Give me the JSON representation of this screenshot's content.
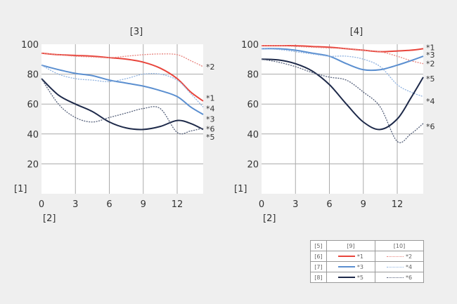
{
  "chart_data": [
    {
      "type": "line",
      "title": "[3]",
      "ylabel": "[1]",
      "xlabel": "[2]",
      "xlim": [
        0,
        14.3
      ],
      "ylim": [
        0,
        100
      ],
      "xticks": [
        0,
        3,
        6,
        9,
        12
      ],
      "yticks": [
        20,
        40,
        60,
        80,
        100
      ],
      "grid": true,
      "x": [
        0,
        1.5,
        3,
        4.5,
        6,
        7.5,
        9,
        10.5,
        12,
        13.2,
        14.3
      ],
      "series": [
        {
          "name": "*1",
          "values": [
            94,
            93,
            92.5,
            92,
            91,
            90,
            88,
            84,
            77,
            68,
            62
          ]
        },
        {
          "name": "*2",
          "values": [
            94,
            93,
            92,
            91.5,
            91,
            92,
            93,
            93.5,
            93,
            89,
            85
          ]
        },
        {
          "name": "*3",
          "values": [
            86,
            83,
            80.5,
            79,
            76,
            74,
            72,
            69,
            65,
            58,
            53
          ]
        },
        {
          "name": "*4",
          "values": [
            86,
            80,
            77,
            76,
            75,
            77,
            80,
            80,
            76,
            67,
            58
          ]
        },
        {
          "name": "*5",
          "values": [
            77,
            66,
            60,
            55,
            48,
            44,
            43,
            45,
            49,
            47,
            43
          ]
        },
        {
          "name": "*6",
          "values": [
            77,
            60,
            51,
            48,
            51,
            54,
            57,
            57,
            41,
            42,
            44
          ]
        }
      ],
      "end_labels": [
        {
          "text": "*2",
          "y": 85
        },
        {
          "text": "*1",
          "y": 64
        },
        {
          "text": "*4",
          "y": 57
        },
        {
          "text": "*3",
          "y": 50
        },
        {
          "text": "*6",
          "y": 43.5
        },
        {
          "text": "*5",
          "y": 38
        }
      ]
    },
    {
      "type": "line",
      "title": "[4]",
      "ylabel": "[1]",
      "xlabel": "[2]",
      "xlim": [
        0,
        14.3
      ],
      "ylim": [
        0,
        100
      ],
      "xticks": [
        0,
        3,
        6,
        9,
        12
      ],
      "yticks": [
        20,
        40,
        60,
        80,
        100
      ],
      "grid": true,
      "x": [
        0,
        1.5,
        3,
        4.5,
        6,
        7.5,
        9,
        10.5,
        12,
        13.2,
        14.3
      ],
      "series": [
        {
          "name": "*1",
          "values": [
            99,
            99,
            99,
            98.5,
            98,
            97,
            96,
            95,
            95.5,
            96,
            97
          ]
        },
        {
          "name": "*2",
          "values": [
            99,
            99,
            98.5,
            98,
            97.5,
            97,
            96,
            95,
            92,
            89,
            87
          ]
        },
        {
          "name": "*3",
          "values": [
            97,
            97,
            96,
            94,
            92,
            87,
            83,
            83,
            86,
            89,
            92
          ]
        },
        {
          "name": "*4",
          "values": [
            97,
            96.5,
            95,
            93.5,
            92,
            92,
            90,
            85,
            73,
            68,
            65
          ]
        },
        {
          "name": "*5",
          "values": [
            90,
            89.5,
            87,
            82,
            73,
            60,
            48,
            43,
            50,
            64,
            78
          ]
        },
        {
          "name": "*6",
          "values": [
            90,
            88,
            85,
            81,
            78,
            76,
            68,
            58,
            35,
            40,
            47
          ]
        }
      ],
      "end_labels": [
        {
          "text": "*1",
          "y": 98
        },
        {
          "text": "*3",
          "y": 93
        },
        {
          "text": "*2",
          "y": 87
        },
        {
          "text": "*5",
          "y": 77
        },
        {
          "text": "*4",
          "y": 62
        },
        {
          "text": "*6",
          "y": 45
        }
      ]
    }
  ],
  "styles": {
    "*1": {
      "color": "#e8453c",
      "dash": false
    },
    "*2": {
      "color": "#e8857f",
      "dash": true
    },
    "*3": {
      "color": "#5b8fd0",
      "dash": false
    },
    "*4": {
      "color": "#8fb2e0",
      "dash": true
    },
    "*5": {
      "color": "#1e2a4a",
      "dash": false
    },
    "*6": {
      "color": "#55607a",
      "dash": true
    }
  },
  "legend": {
    "headers": [
      "[5]",
      "[9]",
      "[10]"
    ],
    "rows": [
      {
        "label": "[6]",
        "a": "*1",
        "b": "*2"
      },
      {
        "label": "[7]",
        "a": "*3",
        "b": "*4"
      },
      {
        "label": "[8]",
        "a": "*5",
        "b": "*6"
      }
    ]
  }
}
